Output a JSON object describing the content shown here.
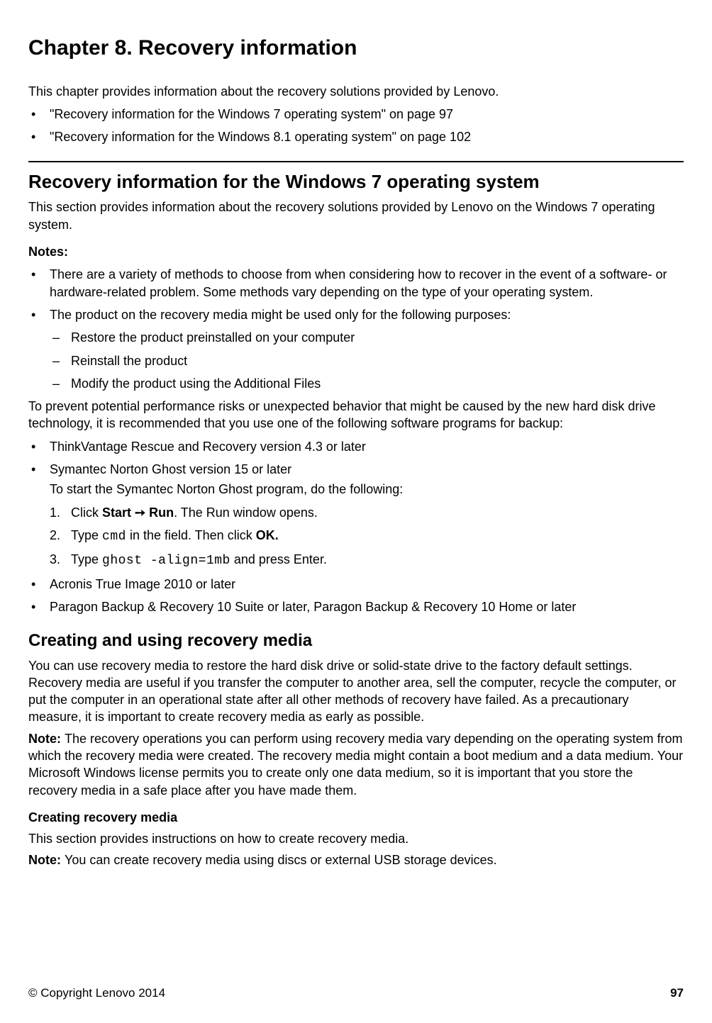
{
  "chapter_title": "Chapter 8.   Recovery information",
  "intro": "This chapter provides information about the recovery solutions provided by Lenovo.",
  "intro_links": [
    "\"Recovery information for the Windows 7 operating system\" on page 97",
    "\"Recovery information for the Windows 8.1 operating system\" on page 102"
  ],
  "section1": {
    "title": "Recovery information for the Windows 7 operating system",
    "intro": "This section provides information about the recovery solutions provided by Lenovo on the Windows 7 operating system.",
    "notes_label": "Notes:",
    "note1": "There are a variety of methods to choose from when considering how to recover in the event of a software- or hardware-related problem. Some methods vary depending on the type of your operating system.",
    "note2": "The product on the recovery media might be used only for the following purposes:",
    "note2_sub": [
      "Restore the product preinstalled on your computer",
      "Reinstall the product",
      "Modify the product using the Additional Files"
    ],
    "prevent_para": "To prevent potential performance risks or unexpected behavior that might be caused by the new hard disk drive technology, it is recommended that you use one of the following software programs for backup:",
    "backup1": "ThinkVantage Rescue and Recovery version 4.3 or later",
    "backup2": "Symantec Norton Ghost version 15 or later",
    "backup2_sub_intro": "To start the Symantec Norton Ghost program, do the following:",
    "step1_pre": "Click ",
    "step1_bold": "Start ➙ Run",
    "step1_post": ". The Run window opens.",
    "step2_pre": "Type ",
    "step2_mono": "cmd",
    "step2_mid": " in the field. Then click ",
    "step2_bold": "OK.",
    "step3_pre": "Type ",
    "step3_mono": "ghost -align=1mb",
    "step3_post": " and press Enter.",
    "backup3": "Acronis True Image 2010 or later",
    "backup4": "Paragon Backup & Recovery 10 Suite or later, Paragon Backup & Recovery 10 Home or later"
  },
  "section2": {
    "title": "Creating and using recovery media",
    "para1": "You can use recovery media to restore the hard disk drive or solid-state drive to the factory default settings. Recovery media are useful if you transfer the computer to another area, sell the computer, recycle the computer, or put the computer in an operational state after all other methods of recovery have failed. As a precautionary measure, it is important to create recovery media as early as possible.",
    "note_label": "Note: ",
    "note_text": "The recovery operations you can perform using recovery media vary depending on the operating system from which the recovery media were created. The recovery media might contain a boot medium and a data medium. Your Microsoft Windows license permits you to create only one data medium, so it is important that you store the recovery media in a safe place after you have made them.",
    "sub_heading": "Creating recovery media",
    "sub_para": "This section provides instructions on how to create recovery media.",
    "sub_note_label": "Note: ",
    "sub_note_text": "You can create recovery media using discs or external USB storage devices."
  },
  "footer": {
    "copyright": "© Copyright Lenovo 2014",
    "page": "97"
  }
}
